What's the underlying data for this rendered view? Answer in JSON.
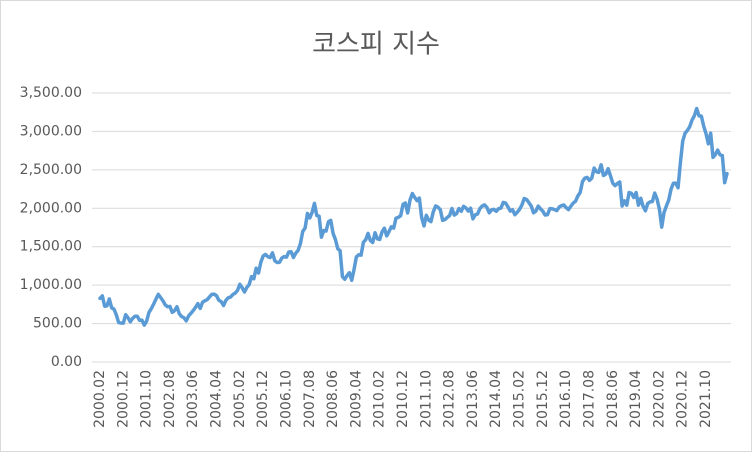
{
  "chart_data": {
    "type": "line",
    "title": "코스피 지수",
    "categories": [
      "2000.02",
      null,
      null,
      null,
      null,
      null,
      null,
      null,
      null,
      null,
      "2000.12",
      null,
      null,
      null,
      null,
      null,
      null,
      null,
      null,
      null,
      "2001.10",
      null,
      null,
      null,
      null,
      null,
      null,
      null,
      null,
      null,
      "2002.08",
      null,
      null,
      null,
      null,
      null,
      null,
      null,
      null,
      null,
      "2003.06",
      null,
      null,
      null,
      null,
      null,
      null,
      null,
      null,
      null,
      "2004.04",
      null,
      null,
      null,
      null,
      null,
      null,
      null,
      null,
      null,
      "2005.02",
      null,
      null,
      null,
      null,
      null,
      null,
      null,
      null,
      null,
      "2005.12",
      null,
      null,
      null,
      null,
      null,
      null,
      null,
      null,
      null,
      "2006.10",
      null,
      null,
      null,
      null,
      null,
      null,
      null,
      null,
      null,
      "2007.08",
      null,
      null,
      null,
      null,
      null,
      null,
      null,
      null,
      null,
      "2008.06",
      null,
      null,
      null,
      null,
      null,
      null,
      null,
      null,
      null,
      "2009.04",
      null,
      null,
      null,
      null,
      null,
      null,
      null,
      null,
      null,
      "2010.02",
      null,
      null,
      null,
      null,
      null,
      null,
      null,
      null,
      null,
      "2010.12",
      null,
      null,
      null,
      null,
      null,
      null,
      null,
      null,
      null,
      "2011.10",
      null,
      null,
      null,
      null,
      null,
      null,
      null,
      null,
      null,
      "2012.08",
      null,
      null,
      null,
      null,
      null,
      null,
      null,
      null,
      null,
      "2013.06",
      null,
      null,
      null,
      null,
      null,
      null,
      null,
      null,
      null,
      "2014.04",
      null,
      null,
      null,
      null,
      null,
      null,
      null,
      null,
      null,
      "2015.02",
      null,
      null,
      null,
      null,
      null,
      null,
      null,
      null,
      null,
      "2015.12",
      null,
      null,
      null,
      null,
      null,
      null,
      null,
      null,
      null,
      "2016.10",
      null,
      null,
      null,
      null,
      null,
      null,
      null,
      null,
      null,
      "2017.08",
      null,
      null,
      null,
      null,
      null,
      null,
      null,
      null,
      null,
      "2018.06",
      null,
      null,
      null,
      null,
      null,
      null,
      null,
      null,
      null,
      "2019.04",
      null,
      null,
      null,
      null,
      null,
      null,
      null,
      null,
      null,
      "2020.02",
      null,
      null,
      null,
      null,
      null,
      null,
      null,
      null,
      null,
      "2020.12",
      null,
      null,
      null,
      null,
      null,
      null,
      null,
      null,
      null,
      "2021.10",
      null,
      null,
      null,
      null,
      null,
      null,
      null,
      null,
      null
    ],
    "values": [
      828,
      860,
      725,
      731,
      821,
      705,
      688,
      613,
      514,
      507,
      505,
      615,
      576,
      523,
      568,
      595,
      595,
      542,
      545,
      480,
      532,
      645,
      694,
      753,
      818,
      880,
      839,
      797,
      743,
      719,
      723,
      646,
      668,
      719,
      628,
      592,
      576,
      535,
      599,
      633,
      670,
      712,
      760,
      697,
      778,
      797,
      811,
      848,
      880,
      883,
      862,
      803,
      785,
      735,
      802,
      836,
      845,
      878,
      896,
      932,
      1011,
      966,
      911,
      970,
      1008,
      1111,
      1083,
      1221,
      1158,
      1297,
      1379,
      1399,
      1371,
      1359,
      1420,
      1317,
      1295,
      1297,
      1352,
      1371,
      1364,
      1432,
      1434,
      1360,
      1417,
      1453,
      1543,
      1700,
      1744,
      1933,
      1874,
      1946,
      2064,
      1906,
      1897,
      1624,
      1711,
      1704,
      1825,
      1843,
      1674,
      1594,
      1474,
      1448,
      1113,
      1076,
      1124,
      1162,
      1063,
      1206,
      1369,
      1395,
      1390,
      1557,
      1591,
      1673,
      1580,
      1555,
      1682,
      1602,
      1594,
      1692,
      1741,
      1641,
      1698,
      1759,
      1742,
      1872,
      1882,
      1904,
      2051,
      2069,
      1939,
      2106,
      2192,
      2142,
      2100,
      2133,
      1880,
      1770,
      1909,
      1847,
      1826,
      1956,
      2030,
      2014,
      1982,
      1843,
      1854,
      1881,
      1906,
      1996,
      1912,
      1932,
      1997,
      1961,
      2026,
      2005,
      1964,
      2001,
      1863,
      1914,
      1926,
      1997,
      2030,
      2044,
      2011,
      1941,
      1980,
      1986,
      1961,
      1995,
      2002,
      2076,
      2068,
      2020,
      1964,
      1981,
      1916,
      1949,
      1986,
      2041,
      2127,
      2115,
      2074,
      2030,
      1941,
      1963,
      2029,
      1992,
      1961,
      1912,
      1917,
      1996,
      1994,
      1983,
      1970,
      2016,
      2034,
      2043,
      2008,
      1983,
      2026,
      2067,
      2091,
      2160,
      2205,
      2347,
      2392,
      2402,
      2363,
      2394,
      2523,
      2476,
      2467,
      2566,
      2427,
      2445,
      2515,
      2423,
      2326,
      2295,
      2323,
      2343,
      2030,
      2097,
      2041,
      2205,
      2195,
      2140,
      2204,
      2041,
      2130,
      2025,
      1968,
      2063,
      2083,
      2088,
      2198,
      2119,
      1987,
      1755,
      1947,
      2030,
      2108,
      2249,
      2326,
      2327,
      2267,
      2591,
      2873,
      2976,
      3013,
      3061,
      3148,
      3204,
      3297,
      3202,
      3199,
      3069,
      2971,
      2839,
      2977,
      2663,
      2699,
      2757,
      2695,
      2686,
      2333,
      2452
    ],
    "color": "#5b9bd5",
    "ylim": [
      0,
      3500
    ],
    "yticks": [
      {
        "value": 0,
        "label": "0.00"
      },
      {
        "value": 500,
        "label": "500.00"
      },
      {
        "value": 1000,
        "label": "1,000.00"
      },
      {
        "value": 1500,
        "label": "1,500.00"
      },
      {
        "value": 2000,
        "label": "2,000.00"
      },
      {
        "value": 2500,
        "label": "2,500.00"
      },
      {
        "value": 3000,
        "label": "3,000.00"
      },
      {
        "value": 3500,
        "label": "3,500.00"
      }
    ],
    "grid": true
  }
}
